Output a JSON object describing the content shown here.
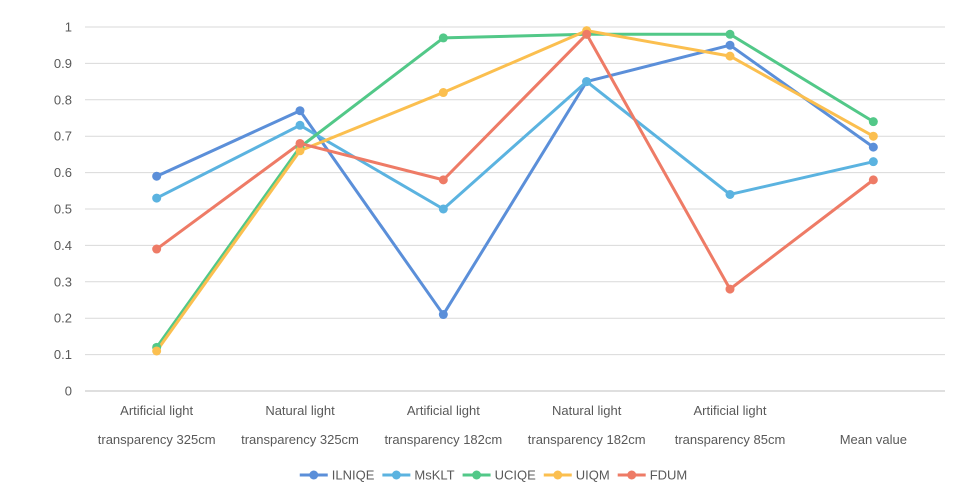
{
  "chart_data": {
    "type": "line",
    "categories": [
      [
        "Artificial light",
        "transparency 325cm"
      ],
      [
        "Natural light",
        "transparency 325cm"
      ],
      [
        "Artificial light",
        "transparency 182cm"
      ],
      [
        "Natural light",
        "transparency 182cm"
      ],
      [
        "Artificial light",
        "transparency 85cm"
      ],
      [
        "",
        "Mean value"
      ]
    ],
    "ylim": [
      0,
      1
    ],
    "yticks": [
      "0",
      "0.1",
      "0.2",
      "0.3",
      "0.4",
      "0.5",
      "0.6",
      "0.7",
      "0.8",
      "0.9",
      "1"
    ],
    "grid": true,
    "legend_position": "bottom",
    "series": [
      {
        "name": "ILNIQE",
        "color": "#5B8FD9",
        "values": [
          0.59,
          0.77,
          0.21,
          0.85,
          0.95,
          0.67
        ]
      },
      {
        "name": "MsKLT",
        "color": "#5BB3E0",
        "values": [
          0.53,
          0.73,
          0.5,
          0.85,
          0.54,
          0.63
        ]
      },
      {
        "name": "UCIQE",
        "color": "#52C888",
        "values": [
          0.12,
          0.67,
          0.97,
          0.98,
          0.98,
          0.74
        ]
      },
      {
        "name": "UIQM",
        "color": "#FBBF4F",
        "values": [
          0.11,
          0.66,
          0.82,
          0.99,
          0.92,
          0.7
        ]
      },
      {
        "name": "FDUM",
        "color": "#EE7B66",
        "values": [
          0.39,
          0.68,
          0.58,
          0.98,
          0.28,
          0.58
        ]
      }
    ]
  }
}
